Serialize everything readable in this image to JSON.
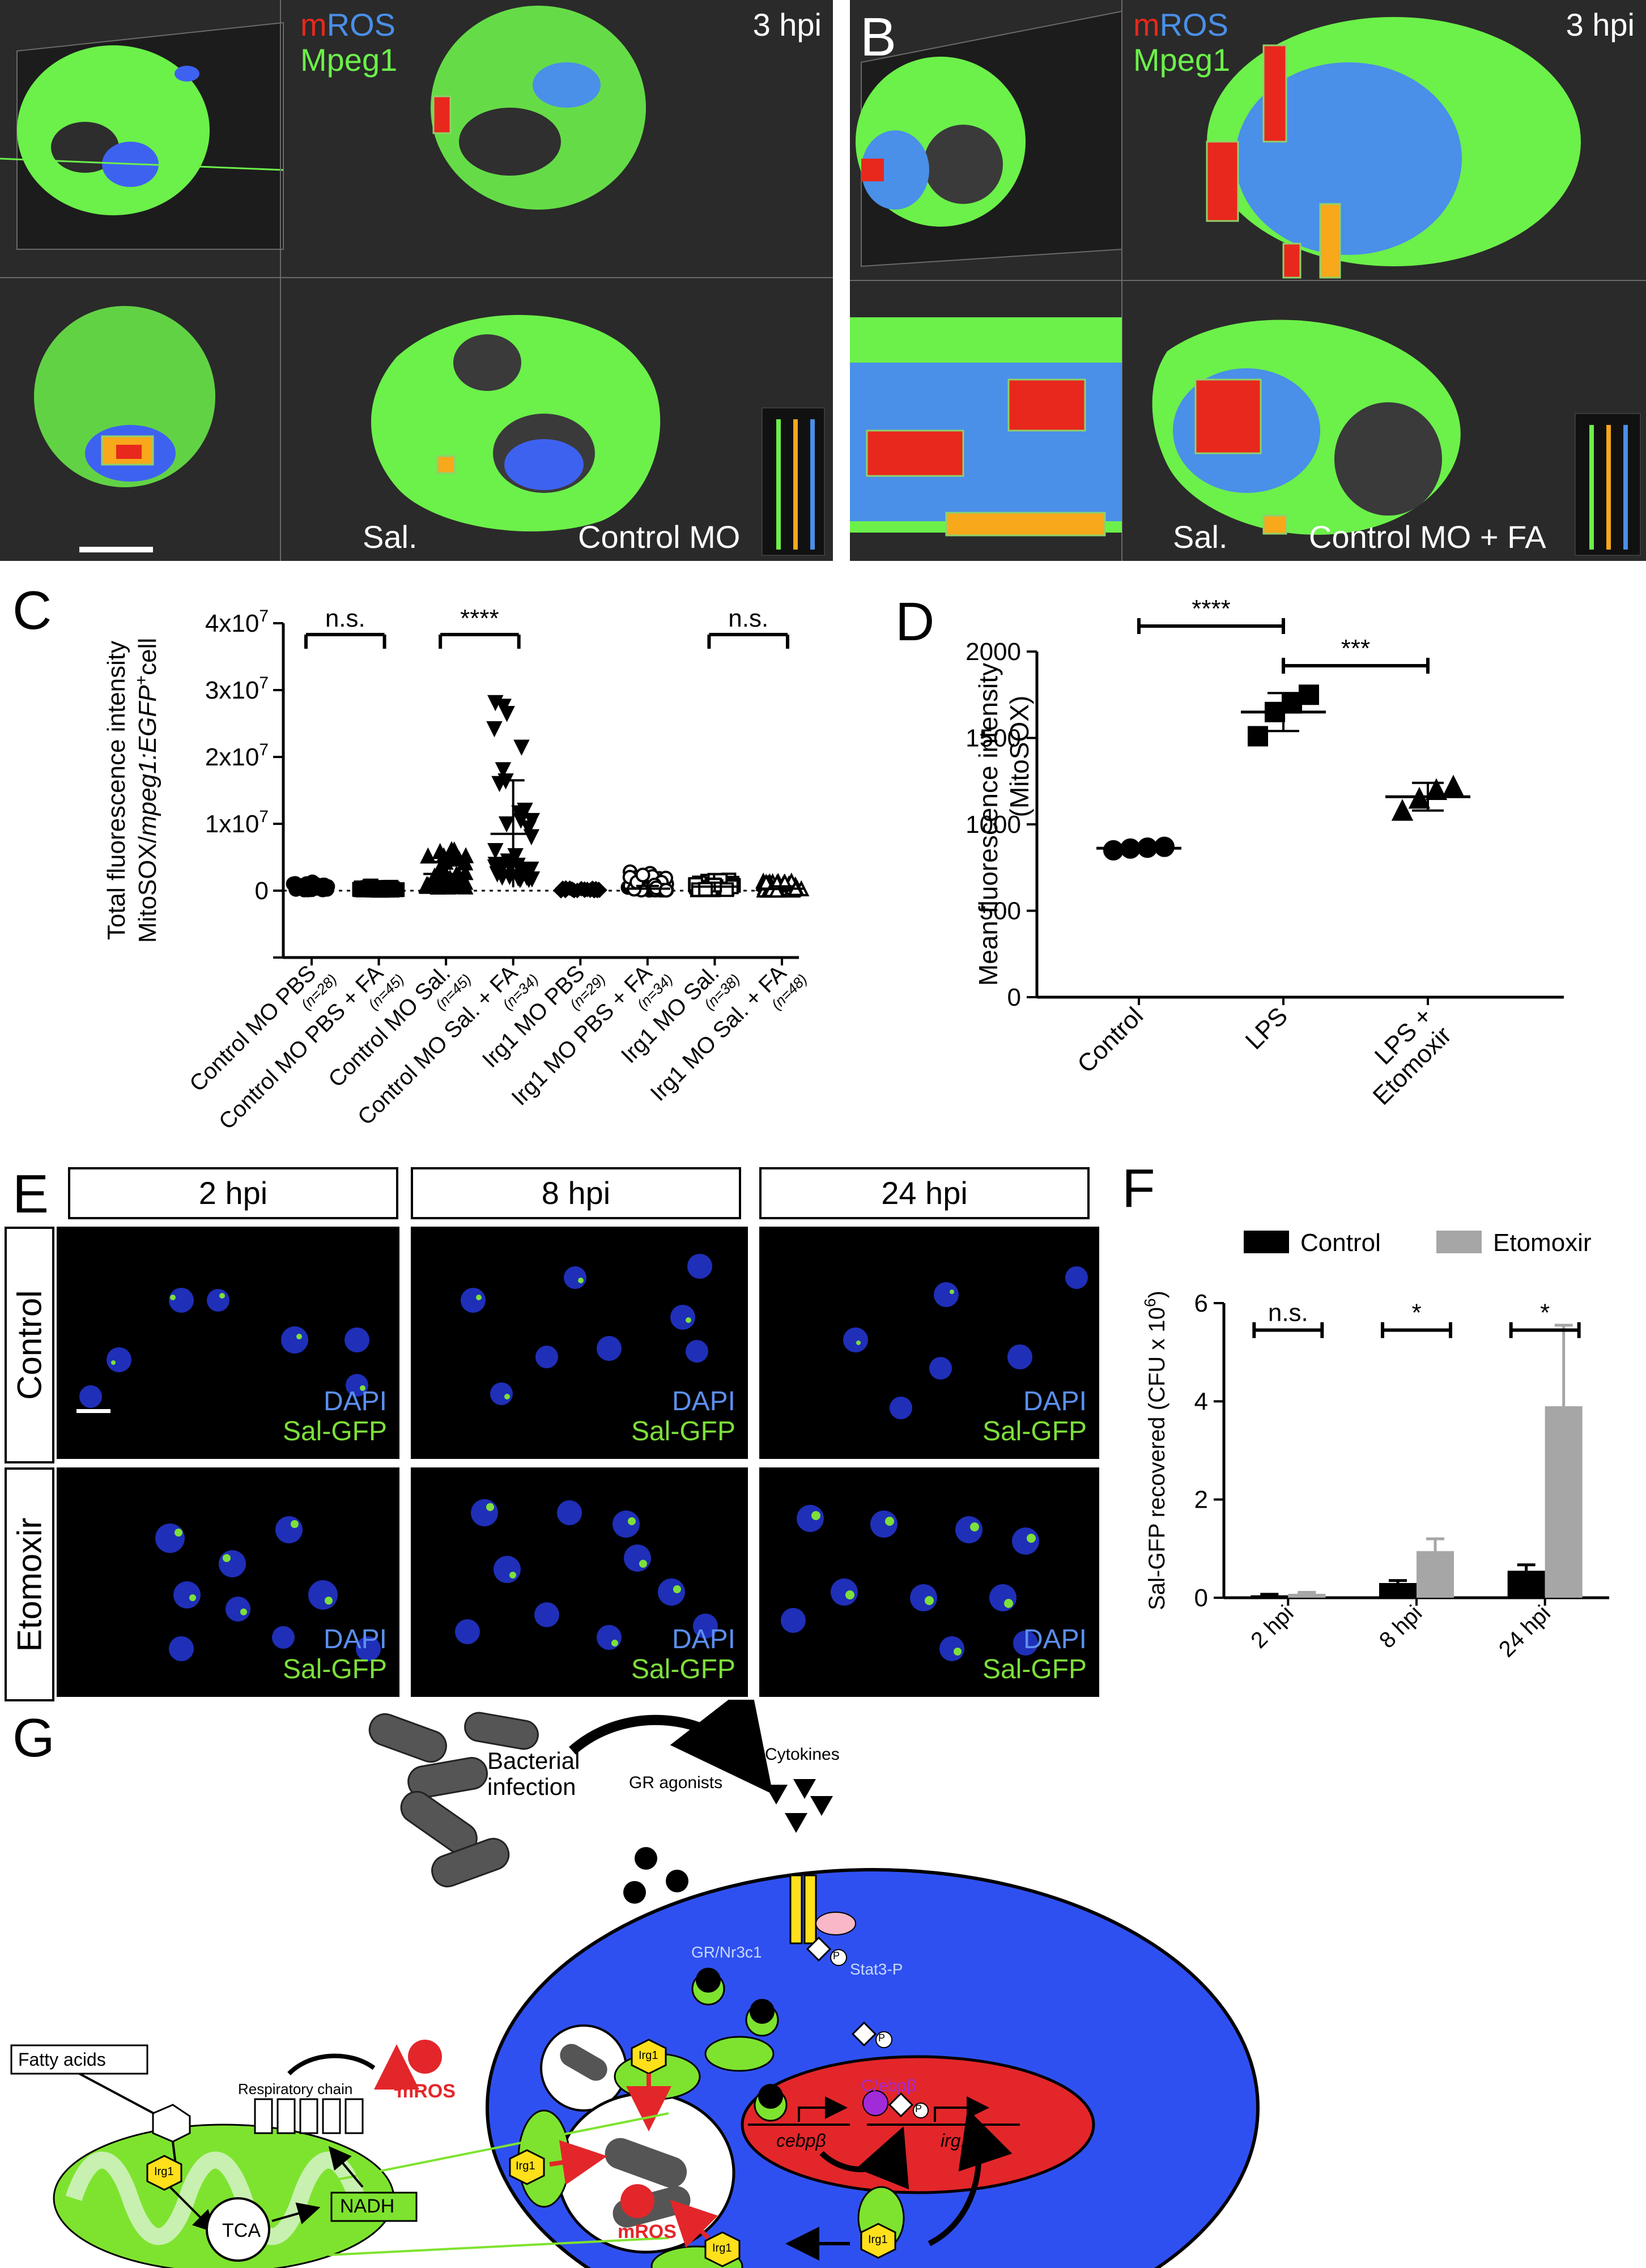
{
  "panels": {
    "A": "A",
    "B": "B",
    "C": "C",
    "D": "D",
    "E": "E",
    "F": "F",
    "G": "G"
  },
  "panel_a": {
    "stain_m": "m",
    "stain_ros": "ROS",
    "marker": "Mpeg1",
    "time": "3 hpi",
    "infection": "Sal.",
    "condition": "Control MO"
  },
  "panel_b": {
    "stain_m": "m",
    "stain_ros": "ROS",
    "marker": "Mpeg1",
    "time": "3 hpi",
    "infection": "Sal.",
    "condition": "Control MO + FA"
  },
  "colors": {
    "mpeg_green": "#6cf04a",
    "ros_red": "#e8281c",
    "ros_orange": "#f7a81b",
    "ros_blue": "#4a8fe8",
    "dapi": "#5b8ff0",
    "sal_green": "#7de03a",
    "membrane_blue": "#2f50f0",
    "mito_green": "#7ee32f",
    "nucleus_red": "#e3262a",
    "irg1_yellow": "#ffe01a",
    "bar_control": "#000000",
    "bar_etomoxir": "#a6a6a6"
  },
  "chart_data": [
    {
      "panel": "C",
      "type": "scatter",
      "ylabel_line1": "Total fluorescence intensity",
      "ylabel_line2_prefix": "MitoSOX/",
      "ylabel_line2_italic": "mpeg1:EGFP",
      "ylabel_line2_sup": "+",
      "ylabel_line2_suffix": "cell",
      "yticks": [
        {
          "base": "4x10",
          "exp": "7",
          "value": 40000000
        },
        {
          "base": "3x10",
          "exp": "7",
          "value": 30000000
        },
        {
          "base": "2x10",
          "exp": "7",
          "value": 20000000
        },
        {
          "base": "1x10",
          "exp": "7",
          "value": 10000000
        },
        {
          "base": "0",
          "exp": "",
          "value": 0
        }
      ],
      "ylim": [
        -10000000,
        40000000
      ],
      "categories": [
        {
          "label": "Control MO PBS",
          "n": "(n=28)",
          "marker": "circle-filled",
          "mean": 500000,
          "sd": 600000
        },
        {
          "label": "Control MO PBS + FA",
          "n": "(n=45)",
          "marker": "square-filled",
          "mean": 300000,
          "sd": 300000
        },
        {
          "label": "Control MO Sal.",
          "n": "(n=45)",
          "marker": "triangle-filled",
          "mean": 2500000,
          "sd": 1800000
        },
        {
          "label": "Control MO Sal. + FA",
          "n": "(n=34)",
          "marker": "triangle-down-filled",
          "mean": 8500000,
          "sd": 8000000
        },
        {
          "label": "Irg1 MO PBS",
          "n": "(n=29)",
          "marker": "diamond-filled",
          "mean": 100000,
          "sd": 100000
        },
        {
          "label": "Irg1 MO PBS + FA",
          "n": "(n=34)",
          "marker": "circle-open",
          "mean": 300000,
          "sd": 400000
        },
        {
          "label": "Irg1 MO Sal.",
          "n": "(n=38)",
          "marker": "square-open",
          "mean": 600000,
          "sd": 600000
        },
        {
          "label": "Irg1 MO Sal. + FA",
          "n": "(n=48)",
          "marker": "triangle-open",
          "mean": 300000,
          "sd": 350000
        }
      ],
      "comparisons": [
        {
          "from": 0,
          "to": 1,
          "label": "n.s."
        },
        {
          "from": 2,
          "to": 3,
          "label": "****"
        },
        {
          "from": 6,
          "to": 7,
          "label": "n.s."
        }
      ],
      "maxima": [
        1500000,
        800000,
        6500000,
        30000000,
        400000,
        3500000,
        2000000,
        1500000
      ]
    },
    {
      "panel": "D",
      "type": "scatter",
      "ylabel_line1": "Mean fluorescence intensity",
      "ylabel_line2": "(MitoSOX)",
      "yticks": [
        0,
        500,
        1000,
        1500,
        2000
      ],
      "ylim": [
        0,
        2000
      ],
      "categories": [
        {
          "label": "Control",
          "marker": "circle",
          "values": [
            850,
            860,
            865,
            870
          ],
          "mean": 862,
          "sd": 10
        },
        {
          "label": "LPS",
          "marker": "square",
          "values": [
            1510,
            1650,
            1700,
            1750
          ],
          "mean": 1650,
          "sd": 110
        },
        {
          "label": "LPS + Etomoxir",
          "label_line1": "LPS +",
          "label_line2": "Etomoxir",
          "marker": "triangle",
          "values": [
            1080,
            1150,
            1200,
            1220
          ],
          "mean": 1160,
          "sd": 80
        }
      ],
      "comparisons": [
        {
          "from": 0,
          "to": 1,
          "label": "****"
        },
        {
          "from": 1,
          "to": 2,
          "label": "***"
        }
      ]
    },
    {
      "panel": "F",
      "type": "bar",
      "ylabel": "Sal-GFP recovered (CFU x 10",
      "ylabel_sup": "6",
      "ylabel_close": ")",
      "yticks": [
        0,
        2,
        4,
        6
      ],
      "ylim": [
        0,
        6
      ],
      "categories": [
        "2 hpi",
        "8 hpi",
        "24 hpi"
      ],
      "series": [
        {
          "name": "Control",
          "values": [
            0.05,
            0.3,
            0.55
          ],
          "errors": [
            0.02,
            0.05,
            0.12
          ]
        },
        {
          "name": "Etomoxir",
          "values": [
            0.08,
            0.95,
            3.9
          ],
          "errors": [
            0.03,
            0.25,
            1.65
          ]
        }
      ],
      "comparisons": [
        {
          "label": "n.s."
        },
        {
          "label": "*"
        },
        {
          "label": "*"
        }
      ]
    }
  ],
  "panel_e": {
    "columns": [
      "2 hpi",
      "8 hpi",
      "24 hpi"
    ],
    "rows": [
      "Control",
      "Etomoxir"
    ],
    "stain1": "DAPI",
    "stain2": "Sal-GFP"
  },
  "panel_g": {
    "bacterial_infection_line1": "Bacterial",
    "bacterial_infection_line2": "infection",
    "cytokines": "Cytokines",
    "gr_agonists": "GR agonists",
    "gr_nr3c1": "GR/Nr3c1",
    "stat3": "Stat3-P",
    "p": "P",
    "cebpb_protein": "C/ebpβ",
    "cebpb_gene": "cebpβ",
    "irg1_gene": "irg1",
    "irg1": "Irg1",
    "fatty_acids": "Fatty acids",
    "respiratory_chain": "Respiratory chain",
    "mros": "mROS",
    "tca": "TCA",
    "nadh": "NADH"
  }
}
